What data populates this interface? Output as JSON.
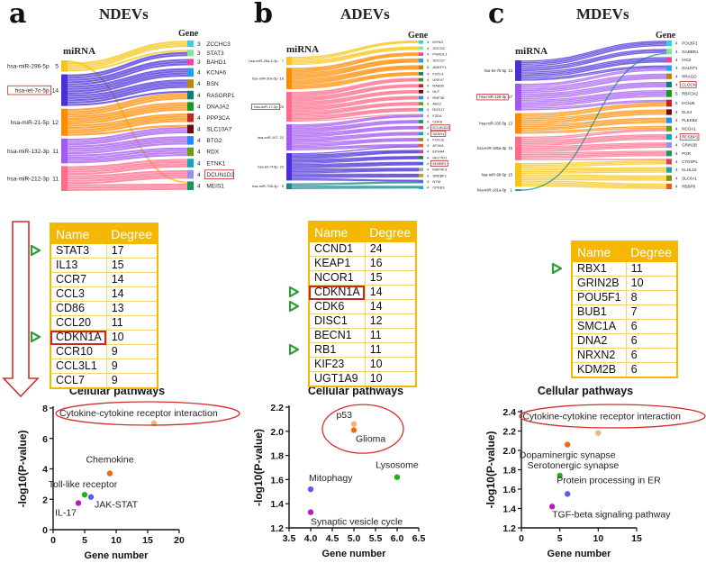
{
  "panels": [
    {
      "letter": "a",
      "title": "NDEVs",
      "sankey": {
        "left_header": "miRNA",
        "right_header": "Gene",
        "left": [
          {
            "label": "hsa-miR-296-5p",
            "count": 5,
            "color": "#f5c518"
          },
          {
            "label": "hsa-let-7c-5p",
            "count": 14,
            "color": "#4b2fd8",
            "highlighted": true
          },
          {
            "label": "hsa-miR-21-5p",
            "count": 12,
            "color": "#ff8c00"
          },
          {
            "label": "hsa-miR-132-3p",
            "count": 11,
            "color": "#a459f0"
          },
          {
            "label": "hsa-miR-212-3p",
            "count": 11,
            "color": "#ff6b8a"
          }
        ],
        "right": [
          {
            "label": "ZCCHC3",
            "count": 3
          },
          {
            "label": "STAT3",
            "count": 3
          },
          {
            "label": "BAHD1",
            "count": 3
          },
          {
            "label": "KCNA6",
            "count": 4
          },
          {
            "label": "BSN",
            "count": 4
          },
          {
            "label": "RASGRP1",
            "count": 4
          },
          {
            "label": "DNAJA2",
            "count": 4
          },
          {
            "label": "PPP3CA",
            "count": 4
          },
          {
            "label": "SLC10A7",
            "count": 4
          },
          {
            "label": "BTG2",
            "count": 4
          },
          {
            "label": "RDX",
            "count": 4
          },
          {
            "label": "ETNK1",
            "count": 4
          },
          {
            "label": "DCUN1D3",
            "count": 4,
            "highlighted": true
          },
          {
            "label": "MEIS1",
            "count": 4
          }
        ]
      },
      "table": {
        "headers": [
          "Name",
          "Degree"
        ],
        "rows": [
          {
            "name": "STAT3",
            "degree": "17",
            "flag": true
          },
          {
            "name": "IL13",
            "degree": "15"
          },
          {
            "name": "CCR7",
            "degree": "14"
          },
          {
            "name": "CCL3",
            "degree": "14"
          },
          {
            "name": "CD86",
            "degree": "13"
          },
          {
            "name": "CCL20",
            "degree": "11"
          },
          {
            "name": "CDKN1A",
            "degree": "10",
            "flag": true,
            "highlighted": true
          },
          {
            "name": "CCR10",
            "degree": "9"
          },
          {
            "name": "CCL3L1",
            "degree": "9"
          },
          {
            "name": "CCL7",
            "degree": "9"
          }
        ]
      }
    },
    {
      "letter": "b",
      "title": "ADEVs",
      "sankey": {
        "left_header": "miRNA",
        "right_header": "Gene",
        "left": [
          {
            "label": "hsa-miR-26a-2-3p",
            "count": 7,
            "color": "#f5c518"
          },
          {
            "label": "hsa-miR-30e-5p",
            "count": 18,
            "color": "#ff8c00"
          },
          {
            "label": "hsa-miR-17-5p",
            "count": 25,
            "color": "#ff6b8a",
            "highlighted": true
          },
          {
            "label": "hsa-miR-107",
            "count": 22,
            "color": "#a459f0"
          },
          {
            "label": "hsa-let-7f-5p",
            "count": 23,
            "color": "#4b2fd8"
          },
          {
            "label": "hsa-miR-758-3p",
            "count": 5,
            "color": "#1a8a8a"
          }
        ],
        "right": [
          {
            "label": "MYNG",
            "count": 4
          },
          {
            "label": "SOCS2",
            "count": 4
          },
          {
            "label": "PGRGL1",
            "count": 4
          },
          {
            "label": "SOCS7",
            "count": 5
          },
          {
            "label": "ANKFY1",
            "count": 5
          },
          {
            "label": "FSTL4",
            "count": 4
          },
          {
            "label": "USP47",
            "count": 4
          },
          {
            "label": "RAB30",
            "count": 4
          },
          {
            "label": "HLF",
            "count": 4
          },
          {
            "label": "RNF38",
            "count": 4
          },
          {
            "label": "ABL2",
            "count": 4
          },
          {
            "label": "RGS17",
            "count": 4
          },
          {
            "label": "FZD4",
            "count": 4
          },
          {
            "label": "CDK6",
            "count": 4
          },
          {
            "label": "DCUN1D3",
            "count": 4,
            "highlighted": true
          },
          {
            "label": "SASH1",
            "count": 4,
            "highlighted": true
          },
          {
            "label": "FOXJ3",
            "count": 4
          },
          {
            "label": "ATXN1",
            "count": 4
          },
          {
            "label": "EPHA4",
            "count": 4
          },
          {
            "label": "HECTD1",
            "count": 4
          },
          {
            "label": "SH3BP1",
            "count": 4,
            "highlighted": true
          },
          {
            "label": "MAP4K3",
            "count": 4
          },
          {
            "label": "SREBF1",
            "count": 4
          },
          {
            "label": "NTM",
            "count": 4
          },
          {
            "label": "CPEB3",
            "count": 4
          }
        ]
      },
      "table": {
        "headers": [
          "Name",
          "Degree"
        ],
        "rows": [
          {
            "name": "CCND1",
            "degree": "24"
          },
          {
            "name": "KEAP1",
            "degree": "16"
          },
          {
            "name": "NCOR1",
            "degree": "15"
          },
          {
            "name": "CDKN1A",
            "degree": "14",
            "flag": true,
            "highlighted": true
          },
          {
            "name": "CDK6",
            "degree": "14",
            "flag": true
          },
          {
            "name": "DISC1",
            "degree": "12"
          },
          {
            "name": "BECN1",
            "degree": "11"
          },
          {
            "name": "RB1",
            "degree": "11",
            "flag": true
          },
          {
            "name": "KIF23",
            "degree": "10"
          },
          {
            "name": "UGT1A9",
            "degree": "10"
          }
        ]
      }
    },
    {
      "letter": "c",
      "title": "MDEVs",
      "sankey": {
        "left_header": "miRNA",
        "right_header": "Gene",
        "left": [
          {
            "label": "hsa-let-7b-5p",
            "count": 13,
            "color": "#4b2fd8"
          },
          {
            "label": "hsa-miR-128-3p",
            "count": 17,
            "color": "#a459f0",
            "highlighted": true
          },
          {
            "label": "hsa-miR-335-5p",
            "count": 13,
            "color": "#ff8c00"
          },
          {
            "label": "hsa-miR-186a-3p",
            "count": 15,
            "color": "#ff6b8a"
          },
          {
            "label": "hsa-miR-98-5p",
            "count": 15,
            "color": "#f5c518"
          },
          {
            "label": "hsa-miR-181a-5p",
            "count": 1,
            "color": "#1a8a8a"
          }
        ],
        "right": [
          {
            "label": "POU5F1",
            "count": 4
          },
          {
            "label": "GABBR1",
            "count": 4
          },
          {
            "label": "HIC2",
            "count": 4
          },
          {
            "label": "GALNT1",
            "count": 4
          },
          {
            "label": "RRAGD",
            "count": 4
          },
          {
            "label": "CLOCK",
            "count": 4,
            "highlighted": true
          },
          {
            "label": "RBFOX2",
            "count": 5
          },
          {
            "label": "KCNJ6",
            "count": 5
          },
          {
            "label": "ELK4",
            "count": 4
          },
          {
            "label": "PLEKB2",
            "count": 4
          },
          {
            "label": "NCOA1",
            "count": 4
          },
          {
            "label": "RCSBP1",
            "count": 4,
            "highlighted": true
          },
          {
            "label": "GRIN2B",
            "count": 4
          },
          {
            "label": "PGR",
            "count": 4
          },
          {
            "label": "CTDSPL",
            "count": 4
          },
          {
            "label": "KLHL15",
            "count": 4
          },
          {
            "label": "SLC6A1",
            "count": 4
          },
          {
            "label": "RBBP8",
            "count": 4
          }
        ]
      },
      "table": {
        "headers": [
          "Name",
          "Degree"
        ],
        "rows": [
          {
            "name": "RBX1",
            "degree": "11",
            "flag": true
          },
          {
            "name": "GRIN2B",
            "degree": "10"
          },
          {
            "name": "POU5F1",
            "degree": "8"
          },
          {
            "name": "BUB1",
            "degree": "7"
          },
          {
            "name": "SMC1A",
            "degree": "6"
          },
          {
            "name": "DNA2",
            "degree": "6"
          },
          {
            "name": "NRXN2",
            "degree": "6"
          },
          {
            "name": "KDM2B",
            "degree": "6"
          }
        ]
      }
    }
  ],
  "colors": {
    "table_header": "#f5b800",
    "highlight": "#c62828",
    "flag": "#2e9e3a"
  },
  "chart_data": [
    {
      "type": "scatter",
      "title": "Cellular pathways",
      "xlabel": "Gene number",
      "ylabel": "-log10(P-value)",
      "xlim": [
        0,
        20
      ],
      "ylim": [
        0,
        8
      ],
      "xticks": [
        0,
        5,
        10,
        15,
        20
      ],
      "yticks": [
        0,
        2,
        4,
        6,
        8
      ],
      "points": [
        {
          "label": "Cytokine-cytokine receptor interaction",
          "x": 16,
          "y": 7.0,
          "color": "#f0b57a",
          "circled": true
        },
        {
          "label": "Chemokine",
          "x": 9,
          "y": 3.7,
          "color": "#f26b11"
        },
        {
          "label": "Toll-like receptor",
          "x": 5,
          "y": 2.3,
          "color": "#1db31d"
        },
        {
          "label": "JAK-STAT",
          "x": 6,
          "y": 2.15,
          "color": "#5b5bf0"
        },
        {
          "label": "IL-17",
          "x": 4,
          "y": 1.75,
          "color": "#b020b8"
        }
      ]
    },
    {
      "type": "scatter",
      "title": "Cellular pathways",
      "xlabel": "Gene number",
      "ylabel": "-log10(P-value)",
      "xlim": [
        3.5,
        6.5
      ],
      "ylim": [
        1.2,
        2.2
      ],
      "xticks": [
        "3.5",
        "4.0",
        "4.5",
        "5.0",
        "5.5",
        "6.0",
        "6.5"
      ],
      "yticks": [
        "1.2",
        "1.4",
        "1.6",
        "1.8",
        "2.0",
        "2.2"
      ],
      "points": [
        {
          "label": "p53",
          "x": 5,
          "y": 2.06,
          "color": "#f0b57a",
          "circled": true
        },
        {
          "label": "Glioma",
          "x": 5,
          "y": 2.01,
          "color": "#f26b11",
          "circled": true
        },
        {
          "label": "Lysosome",
          "x": 6,
          "y": 1.62,
          "color": "#1db31d"
        },
        {
          "label": "Mitophagy",
          "x": 4,
          "y": 1.52,
          "color": "#5b5bf0"
        },
        {
          "label": "Synaptic vesicle cycle",
          "x": 4,
          "y": 1.33,
          "color": "#b020b8"
        }
      ]
    },
    {
      "type": "scatter",
      "title": "Cellular pathways",
      "xlabel": "Gene number",
      "ylabel": "-log10(P-value)",
      "xlim": [
        0,
        15
      ],
      "ylim": [
        1.2,
        2.4
      ],
      "xticks": [
        "0",
        "5",
        "10",
        "15"
      ],
      "yticks": [
        "1.2",
        "1.4",
        "1.6",
        "1.8",
        "2.0",
        "2.2",
        "2.4"
      ],
      "points": [
        {
          "label": "Cytokine-cytokine receptor interaction",
          "x": 10,
          "y": 2.18,
          "color": "#f0b57a",
          "circled": true
        },
        {
          "label": "Dopaminergic synapse",
          "x": 6,
          "y": 2.06,
          "color": "#f26b11"
        },
        {
          "label": "Serotonergic synapse",
          "x": 5,
          "y": 1.74,
          "color": "#1db31d"
        },
        {
          "label": "Protein processing in ER",
          "x": 6,
          "y": 1.55,
          "color": "#5b5bf0"
        },
        {
          "label": "TGF-beta signaling pathway",
          "x": 4,
          "y": 1.42,
          "color": "#b020b8"
        }
      ]
    }
  ]
}
